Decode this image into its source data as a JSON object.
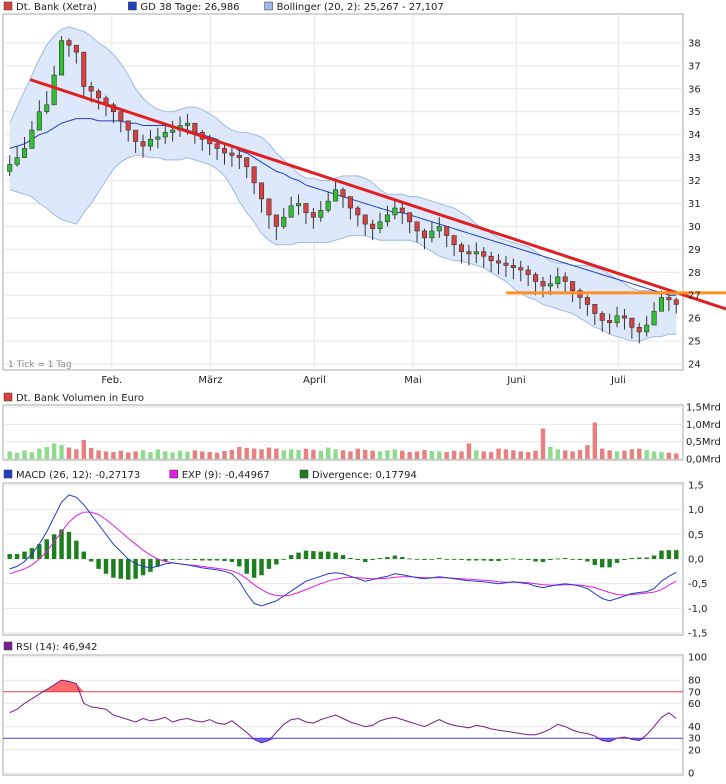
{
  "colors": {
    "up": "#2fbf2f",
    "down": "#d94040",
    "ma": "#1f3fbf",
    "band_fill": "#dde9fb",
    "band_line": "#9fb9e8",
    "trend": "#e02020",
    "support": "#ff9020",
    "vol_up": "#8fdc8f",
    "vol_down": "#e88080",
    "macd": "#1f3fbf",
    "signal": "#e020e0",
    "divergence": "#1e7f1e",
    "rsi": "#7a1e8a",
    "rsi_over": "#ff6a6a",
    "rsi_under": "#6a6aff"
  },
  "chart_data": [
    {
      "panel": "price",
      "type": "candlestick",
      "legend": [
        {
          "label": "Dt. Bank (Xetra)",
          "color": "#d94040"
        },
        {
          "label": "GD 38 Tage: 26,986",
          "color": "#1f3fbf"
        },
        {
          "label": "Bollinger (20, 2): 25,267 - 27,107",
          "color": "#9fb9e8"
        }
      ],
      "note": "1 Tick = 1 Tag",
      "x_labels": [
        "Feb.",
        "März",
        "April",
        "Mai",
        "Juni",
        "Juli"
      ],
      "ylim": [
        24,
        39
      ],
      "y_ticks": [
        "24",
        "25",
        "26",
        "27",
        "28",
        "29",
        "30",
        "31",
        "32",
        "33",
        "34",
        "35",
        "36",
        "37",
        "38"
      ],
      "close": [
        32.7,
        33.0,
        33.4,
        34.2,
        35.0,
        35.3,
        36.6,
        38.1,
        37.9,
        37.6,
        36.1,
        35.9,
        35.6,
        35.3,
        35.0,
        34.6,
        34.2,
        33.7,
        33.5,
        33.8,
        33.9,
        34.1,
        34.2,
        34.4,
        34.5,
        34.1,
        33.8,
        33.6,
        33.4,
        33.2,
        33.1,
        33.0,
        32.6,
        31.9,
        31.2,
        30.5,
        30.0,
        30.4,
        30.9,
        31.0,
        30.6,
        30.4,
        30.7,
        31.1,
        31.6,
        31.3,
        30.8,
        30.5,
        30.1,
        29.9,
        30.2,
        30.5,
        30.8,
        30.6,
        30.2,
        29.8,
        29.5,
        29.8,
        30.0,
        29.6,
        29.2,
        28.9,
        28.8,
        28.9,
        28.7,
        28.5,
        28.4,
        28.3,
        28.2,
        28.1,
        27.9,
        27.6,
        27.4,
        27.5,
        27.8,
        27.6,
        27.2,
        26.9,
        26.6,
        26.2,
        25.9,
        25.8,
        26.1,
        26.0,
        25.6,
        25.4,
        25.7,
        26.3,
        26.9,
        26.8,
        26.6
      ],
      "high": [
        33.1,
        33.5,
        33.9,
        34.6,
        35.5,
        35.9,
        37.0,
        38.3,
        38.2,
        37.9,
        36.5,
        36.3,
        36.0,
        35.7,
        35.4,
        35.0,
        34.6,
        34.1,
        34.0,
        34.2,
        34.3,
        34.5,
        34.6,
        34.8,
        34.9,
        34.5,
        34.2,
        34.0,
        33.8,
        33.6,
        33.5,
        33.4,
        33.0,
        32.3,
        31.6,
        30.9,
        30.4,
        30.8,
        31.3,
        31.4,
        31.0,
        30.8,
        31.1,
        31.5,
        32.0,
        31.7,
        31.2,
        30.9,
        30.5,
        30.3,
        30.6,
        30.9,
        31.2,
        31.0,
        30.6,
        30.2,
        29.9,
        30.2,
        30.4,
        30.0,
        29.6,
        29.3,
        29.2,
        29.3,
        29.1,
        28.9,
        28.8,
        28.7,
        28.6,
        28.5,
        28.3,
        28.0,
        27.8,
        27.9,
        28.2,
        28.0,
        27.6,
        27.3,
        27.0,
        26.6,
        26.3,
        26.2,
        26.5,
        26.4,
        26.0,
        25.8,
        26.1,
        26.7,
        27.2,
        27.1,
        26.9
      ],
      "low": [
        32.2,
        32.6,
        33.0,
        33.8,
        34.6,
        34.9,
        36.1,
        37.6,
        37.4,
        37.1,
        35.6,
        35.4,
        35.1,
        34.8,
        34.5,
        34.1,
        33.7,
        33.2,
        33.0,
        33.3,
        33.4,
        33.6,
        33.7,
        33.9,
        34.0,
        33.6,
        33.3,
        33.1,
        32.9,
        32.7,
        32.6,
        32.5,
        32.1,
        31.4,
        30.6,
        29.9,
        29.4,
        29.9,
        30.4,
        30.5,
        30.1,
        29.9,
        30.2,
        30.6,
        31.1,
        30.8,
        30.3,
        30.0,
        29.6,
        29.4,
        29.7,
        30.0,
        30.3,
        30.1,
        29.7,
        29.3,
        29.0,
        29.3,
        29.5,
        29.1,
        28.7,
        28.4,
        28.3,
        28.4,
        28.2,
        28.0,
        27.9,
        27.8,
        27.7,
        27.6,
        27.4,
        27.0,
        26.9,
        27.0,
        27.3,
        27.1,
        26.7,
        26.4,
        26.1,
        25.7,
        25.4,
        25.3,
        25.6,
        25.5,
        25.1,
        24.9,
        25.2,
        25.8,
        26.4,
        26.3,
        26.2
      ],
      "ma38": [
        33.4,
        33.5,
        33.6,
        33.8,
        34.0,
        34.1,
        34.3,
        34.5,
        34.6,
        34.7,
        34.7,
        34.7,
        34.6,
        34.6,
        34.6,
        34.6,
        34.5,
        34.5,
        34.4,
        34.4,
        34.4,
        34.4,
        34.3,
        34.3,
        34.2,
        34.1,
        34.0,
        33.9,
        33.8,
        33.6,
        33.5,
        33.3,
        33.2,
        33.0,
        32.8,
        32.6,
        32.4,
        32.3,
        32.1,
        32.0,
        31.8,
        31.7,
        31.6,
        31.5,
        31.4,
        31.3,
        31.2,
        31.1,
        31.0,
        30.9,
        30.8,
        30.7,
        30.6,
        30.6,
        30.5,
        30.4,
        30.3,
        30.2,
        30.1,
        30.0,
        29.9,
        29.8,
        29.7,
        29.6,
        29.5,
        29.4,
        29.3,
        29.2,
        29.1,
        29.0,
        28.9,
        28.8,
        28.7,
        28.6,
        28.5,
        28.4,
        28.3,
        28.2,
        28.1,
        28.0,
        27.9,
        27.8,
        27.7,
        27.6,
        27.5,
        27.4,
        27.3,
        27.2,
        27.1,
        27.0,
        27.0
      ],
      "bb_upper": [
        34.5,
        35.2,
        35.9,
        36.6,
        37.3,
        37.9,
        38.3,
        38.6,
        38.7,
        38.6,
        38.5,
        38.3,
        38.0,
        37.8,
        37.5,
        37.1,
        36.6,
        36.0,
        35.6,
        35.3,
        35.1,
        35.0,
        35.0,
        35.1,
        35.2,
        35.2,
        35.1,
        34.9,
        34.7,
        34.4,
        34.2,
        34.1,
        34.1,
        34.0,
        33.9,
        33.6,
        33.2,
        32.9,
        32.6,
        32.3,
        32.1,
        32.1,
        32.0,
        32.0,
        32.1,
        32.2,
        32.2,
        32.2,
        32.1,
        31.9,
        31.6,
        31.4,
        31.4,
        31.4,
        31.3,
        31.3,
        31.2,
        31.1,
        31.0,
        30.9,
        30.8,
        30.6,
        30.4,
        30.1,
        29.9,
        29.7,
        29.5,
        29.4,
        29.3,
        29.2,
        29.1,
        28.9,
        28.7,
        28.5,
        28.4,
        28.4,
        28.3,
        28.3,
        28.3,
        28.2,
        28.1,
        27.9,
        27.7,
        27.5,
        27.3,
        27.2,
        27.2,
        27.2,
        27.1,
        27.1,
        27.1
      ],
      "bb_lower": [
        31.6,
        31.5,
        31.4,
        31.3,
        31.0,
        30.8,
        30.5,
        30.3,
        30.2,
        30.1,
        30.6,
        31.0,
        31.5,
        32.0,
        32.5,
        32.8,
        33.0,
        33.1,
        33.1,
        33.0,
        33.0,
        32.9,
        32.9,
        32.9,
        33.0,
        32.9,
        32.8,
        32.7,
        32.5,
        32.2,
        31.7,
        31.1,
        30.6,
        30.2,
        29.7,
        29.4,
        29.2,
        29.2,
        29.2,
        29.3,
        29.3,
        29.3,
        29.3,
        29.3,
        29.4,
        29.5,
        29.6,
        29.6,
        29.6,
        29.5,
        29.4,
        29.4,
        29.4,
        29.4,
        29.4,
        29.3,
        29.1,
        28.9,
        28.7,
        28.6,
        28.5,
        28.5,
        28.4,
        28.3,
        28.2,
        28.0,
        27.8,
        27.6,
        27.3,
        27.1,
        26.9,
        26.8,
        26.6,
        26.5,
        26.4,
        26.3,
        26.2,
        26.0,
        25.8,
        25.6,
        25.5,
        25.3,
        25.2,
        25.1,
        25.0,
        25.0,
        25.1,
        25.2,
        25.2,
        25.3,
        25.3
      ],
      "trend_line": [
        [
          0.04,
          36.4
        ],
        [
          1.0,
          26.4
        ]
      ],
      "support_line": [
        [
          0.74,
          27.1
        ],
        [
          1.0,
          27.1
        ]
      ]
    },
    {
      "panel": "volume",
      "type": "bar",
      "legend": [
        {
          "label": "Dt. Bank Volumen in Euro",
          "color": "#d94040"
        }
      ],
      "ylim": [
        0,
        1.5
      ],
      "y_ticks": [
        "0,0Mrd",
        "0,5Mrd",
        "1,0Mrd",
        "1,5Mrd"
      ],
      "values": [
        0.22,
        0.18,
        0.25,
        0.2,
        0.3,
        0.35,
        0.45,
        0.4,
        0.33,
        0.28,
        0.55,
        0.32,
        0.25,
        0.22,
        0.2,
        0.24,
        0.19,
        0.22,
        0.25,
        0.2,
        0.28,
        0.22,
        0.19,
        0.24,
        0.21,
        0.25,
        0.22,
        0.2,
        0.18,
        0.23,
        0.26,
        0.35,
        0.32,
        0.3,
        0.28,
        0.33,
        0.3,
        0.25,
        0.28,
        0.26,
        0.3,
        0.27,
        0.24,
        0.33,
        0.28,
        0.25,
        0.22,
        0.3,
        0.26,
        0.24,
        0.22,
        0.25,
        0.28,
        0.24,
        0.2,
        0.22,
        0.26,
        0.23,
        0.22,
        0.2,
        0.24,
        0.22,
        0.45,
        0.25,
        0.22,
        0.2,
        0.3,
        0.28,
        0.25,
        0.22,
        0.2,
        0.24,
        0.88,
        0.35,
        0.28,
        0.25,
        0.22,
        0.26,
        0.4,
        1.05,
        0.3,
        0.25,
        0.22,
        0.24,
        0.28,
        0.3,
        0.26,
        0.22,
        0.2,
        0.18,
        0.16
      ],
      "up": [
        true,
        true,
        true,
        true,
        true,
        true,
        true,
        true,
        false,
        false,
        false,
        false,
        false,
        false,
        false,
        false,
        false,
        false,
        true,
        true,
        true,
        true,
        true,
        true,
        true,
        false,
        false,
        false,
        false,
        false,
        false,
        false,
        false,
        false,
        false,
        false,
        false,
        true,
        true,
        true,
        false,
        false,
        true,
        true,
        true,
        false,
        false,
        false,
        false,
        false,
        true,
        true,
        true,
        false,
        false,
        false,
        false,
        true,
        true,
        false,
        false,
        false,
        false,
        true,
        false,
        false,
        false,
        false,
        false,
        false,
        false,
        false,
        false,
        true,
        true,
        false,
        false,
        false,
        false,
        false,
        false,
        false,
        true,
        false,
        false,
        false,
        true,
        true,
        true,
        false,
        false
      ]
    },
    {
      "panel": "macd",
      "type": "line",
      "legend": [
        {
          "label": "MACD (26, 12): -0,27173",
          "color": "#1f3fbf"
        },
        {
          "label": "EXP (9): -0,44967",
          "color": "#e020e0"
        },
        {
          "label": "Divergence: 0,17794",
          "color": "#1e7f1e"
        }
      ],
      "ylim": [
        -1.5,
        1.5
      ],
      "y_ticks": [
        "-1,5",
        "-1,0",
        "-0,5",
        "0,0",
        "0,5",
        "1,0",
        "1,5"
      ],
      "macd": [
        -0.2,
        -0.15,
        -0.05,
        0.1,
        0.3,
        0.55,
        0.85,
        1.15,
        1.3,
        1.25,
        1.1,
        0.9,
        0.7,
        0.5,
        0.3,
        0.15,
        0.0,
        -0.1,
        -0.15,
        -0.18,
        -0.15,
        -0.1,
        -0.08,
        -0.1,
        -0.12,
        -0.15,
        -0.18,
        -0.2,
        -0.22,
        -0.25,
        -0.3,
        -0.45,
        -0.7,
        -0.9,
        -0.95,
        -0.9,
        -0.85,
        -0.75,
        -0.65,
        -0.55,
        -0.45,
        -0.4,
        -0.35,
        -0.3,
        -0.28,
        -0.3,
        -0.35,
        -0.4,
        -0.45,
        -0.42,
        -0.38,
        -0.35,
        -0.3,
        -0.32,
        -0.35,
        -0.38,
        -0.4,
        -0.38,
        -0.36,
        -0.38,
        -0.4,
        -0.42,
        -0.44,
        -0.45,
        -0.46,
        -0.48,
        -0.5,
        -0.48,
        -0.46,
        -0.48,
        -0.5,
        -0.55,
        -0.58,
        -0.55,
        -0.52,
        -0.5,
        -0.52,
        -0.55,
        -0.6,
        -0.7,
        -0.8,
        -0.85,
        -0.8,
        -0.75,
        -0.7,
        -0.68,
        -0.66,
        -0.6,
        -0.45,
        -0.35,
        -0.27
      ],
      "signal": [
        -0.3,
        -0.25,
        -0.2,
        -0.12,
        0.0,
        0.15,
        0.35,
        0.55,
        0.75,
        0.88,
        0.95,
        0.95,
        0.9,
        0.8,
        0.68,
        0.55,
        0.42,
        0.3,
        0.18,
        0.08,
        0.0,
        -0.05,
        -0.08,
        -0.1,
        -0.12,
        -0.13,
        -0.15,
        -0.17,
        -0.19,
        -0.21,
        -0.24,
        -0.3,
        -0.4,
        -0.52,
        -0.62,
        -0.7,
        -0.74,
        -0.75,
        -0.73,
        -0.68,
        -0.62,
        -0.56,
        -0.5,
        -0.45,
        -0.41,
        -0.38,
        -0.37,
        -0.38,
        -0.39,
        -0.4,
        -0.4,
        -0.39,
        -0.37,
        -0.36,
        -0.36,
        -0.37,
        -0.38,
        -0.38,
        -0.38,
        -0.38,
        -0.39,
        -0.4,
        -0.41,
        -0.42,
        -0.43,
        -0.44,
        -0.46,
        -0.47,
        -0.47,
        -0.47,
        -0.48,
        -0.5,
        -0.52,
        -0.53,
        -0.53,
        -0.52,
        -0.52,
        -0.53,
        -0.55,
        -0.58,
        -0.63,
        -0.68,
        -0.72,
        -0.73,
        -0.72,
        -0.71,
        -0.69,
        -0.67,
        -0.62,
        -0.53,
        -0.45
      ]
    },
    {
      "panel": "rsi",
      "type": "line",
      "legend": [
        {
          "label": "RSI (14): 46,942",
          "color": "#7a1e8a"
        }
      ],
      "ylim": [
        0,
        100
      ],
      "y_ticks": [
        "0",
        "20",
        "30",
        "40",
        "60",
        "70",
        "80",
        "100"
      ],
      "overbought": 70,
      "oversold": 30,
      "values": [
        52,
        55,
        60,
        64,
        68,
        72,
        76,
        80,
        79,
        77,
        60,
        57,
        56,
        55,
        50,
        48,
        46,
        44,
        47,
        45,
        46,
        48,
        44,
        46,
        47,
        45,
        44,
        46,
        43,
        42,
        45,
        40,
        35,
        29,
        26,
        28,
        35,
        42,
        46,
        47,
        44,
        43,
        46,
        48,
        50,
        47,
        44,
        42,
        40,
        41,
        45,
        47,
        48,
        46,
        44,
        42,
        40,
        43,
        46,
        43,
        41,
        40,
        39,
        41,
        40,
        38,
        37,
        36,
        35,
        34,
        33,
        33,
        35,
        38,
        42,
        40,
        37,
        35,
        34,
        32,
        28,
        27,
        30,
        31,
        29,
        28,
        33,
        40,
        48,
        52,
        47
      ]
    }
  ]
}
